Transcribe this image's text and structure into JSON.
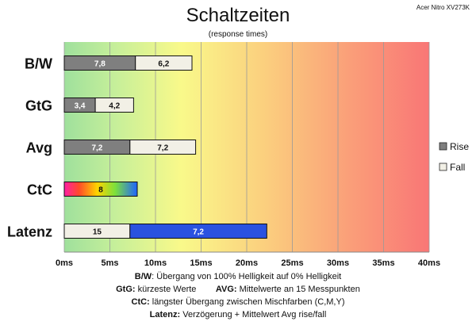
{
  "chart_data": {
    "type": "bar",
    "orientation": "horizontal",
    "stacked": true,
    "title": "Schaltzeiten",
    "subtitle": "(response times)",
    "corner_label": "Acer Nitro XV273K",
    "categories": [
      "B/W",
      "GtG",
      "Avg",
      "CtC",
      "Latenz"
    ],
    "series": [
      {
        "name": "Rise",
        "values": [
          7.8,
          3.4,
          7.2,
          null,
          null
        ],
        "color": "#7f7f7f"
      },
      {
        "name": "Fall",
        "values": [
          6.2,
          4.2,
          7.2,
          null,
          7.2
        ],
        "color": "#f2f0e6"
      },
      {
        "name": "",
        "values": [
          null,
          null,
          null,
          8,
          null
        ],
        "fill": "rainbow"
      },
      {
        "name": "",
        "values": [
          null,
          null,
          null,
          null,
          15
        ],
        "color": "#2a52e0"
      }
    ],
    "value_labels": {
      "B/W": [
        "7,8",
        "6,2"
      ],
      "GtG": [
        "3,4",
        "4,2"
      ],
      "Avg": [
        "7,2",
        "7,2"
      ],
      "CtC": [
        "8"
      ],
      "Latenz": [
        "15",
        "7,2"
      ]
    },
    "x_ticks": [
      0,
      5,
      10,
      15,
      20,
      25,
      30,
      35,
      40
    ],
    "x_tick_labels": [
      "0ms",
      "5ms",
      "10ms",
      "15ms",
      "20ms",
      "25ms",
      "30ms",
      "35ms",
      "40ms"
    ],
    "xlim": [
      0,
      40
    ],
    "grid": true,
    "legend": {
      "position": "right",
      "entries": [
        "Rise",
        "Fall"
      ]
    },
    "background": "gradient green-yellow-red"
  },
  "caption": {
    "line1": {
      "key": "B/W",
      "text": ":  Übergang von 100% Helligkeit auf 0% Helligkeit"
    },
    "line2": {
      "key": "GtG:",
      "text": " kürzeste  Werte",
      "key2": "AVG:",
      "text2": " Mittelwerte  an 15 Messpunkten"
    },
    "line3": {
      "key": "CtC:",
      "text": " längster Übergang  zwischen Mischfarben (C,M,Y)"
    },
    "line4": {
      "key": "Latenz:",
      "text": " Verzögerung  + Mittelwert  Avg rise/fall"
    }
  },
  "colors": {
    "rise": "#7f7f7f",
    "fall": "#f2f0e6",
    "latency": "#2a52e0",
    "grid": "#a0a0a0",
    "bg_green": "#a6e3a1",
    "bg_yellow": "#f9f98a",
    "bg_red": "#f97a7a"
  }
}
